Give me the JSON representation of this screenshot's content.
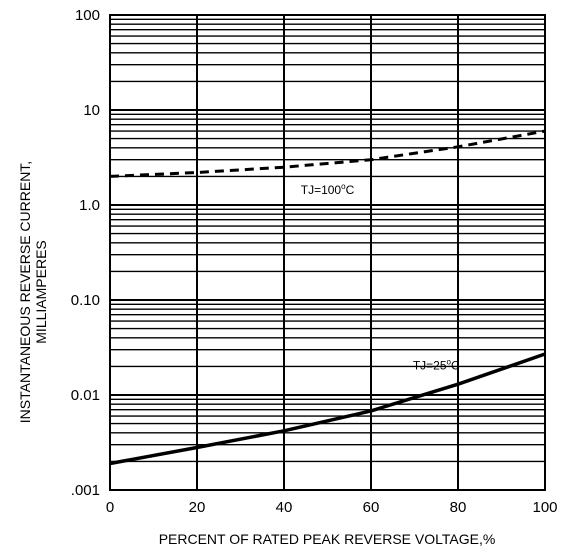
{
  "chart_data": {
    "type": "line",
    "title": "",
    "xlabel": "PERCENT OF RATED PEAK REVERSE VOLTAGE,%",
    "ylabel": [
      "INSTANTANEOUS REVERSE CURRENT,",
      "MILLIAMPERES"
    ],
    "x_scale": "linear",
    "y_scale": "log",
    "xlim": [
      0,
      100
    ],
    "ylim": [
      0.001,
      100
    ],
    "x_ticks": [
      0,
      20,
      40,
      60,
      80,
      100
    ],
    "x_tick_labels": [
      "0",
      "20",
      "40",
      "60",
      "80",
      "100"
    ],
    "y_ticks": [
      0.001,
      0.01,
      0.1,
      1,
      10,
      100
    ],
    "y_tick_labels": [
      ".001",
      "0.01",
      "0.10",
      "1.0",
      "10",
      "100"
    ],
    "grid": true,
    "legend": "none",
    "series": [
      {
        "name": "TJ=100°C",
        "style": "dashed",
        "color": "#000000",
        "x": [
          0,
          20,
          40,
          60,
          80,
          100
        ],
        "y": [
          2.0,
          2.2,
          2.5,
          3.0,
          4.1,
          6.0
        ]
      },
      {
        "name": "TJ=25°C",
        "style": "solid",
        "color": "#000000",
        "x": [
          0,
          20,
          40,
          60,
          80,
          100
        ],
        "y": [
          0.0019,
          0.0028,
          0.0042,
          0.0068,
          0.013,
          0.027
        ]
      }
    ],
    "annotations": [
      {
        "id": "tj100",
        "main": "TJ=100",
        "sup": "o",
        "end": "C",
        "x": 50,
        "y": 1.3
      },
      {
        "id": "tj25",
        "main": "TJ=25",
        "sup": "o",
        "end": "C",
        "x": 75,
        "y": 0.0185
      }
    ]
  }
}
